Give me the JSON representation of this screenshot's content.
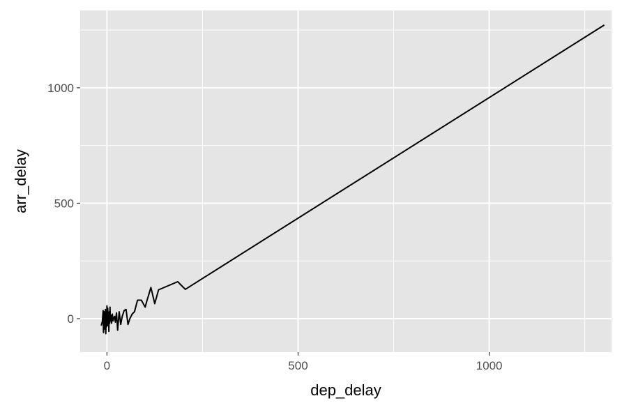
{
  "chart_data": {
    "type": "line",
    "title": "",
    "xlabel": "dep_delay",
    "ylabel": "arr_delay",
    "xlim": [
      -70,
      1320
    ],
    "ylim": [
      -145,
      1335
    ],
    "x_ticks": [
      0,
      500,
      1000
    ],
    "x_tick_labels": [
      "0",
      "500",
      "1000"
    ],
    "y_ticks": [
      0,
      500,
      1000
    ],
    "y_tick_labels": [
      "0",
      "500",
      "1000"
    ],
    "x_minor_ticks": [
      250,
      750,
      1250
    ],
    "y_minor_ticks": [
      250,
      750,
      1250
    ],
    "grid": true,
    "legend": "none",
    "colors": {
      "panel": "#e5e5e5",
      "grid": "#ffffff",
      "line": "#000000"
    },
    "series": [
      {
        "x": [
          -15,
          -12,
          -10,
          -9,
          -8,
          -7,
          -6,
          -5,
          -4,
          -3,
          -2,
          -1,
          0,
          1,
          2,
          3,
          4,
          5,
          6,
          7,
          8,
          9,
          10,
          12,
          14,
          16,
          18,
          20,
          22,
          25,
          28,
          32,
          36,
          40,
          45,
          50,
          55,
          60,
          66,
          72,
          80,
          90,
          100,
          105,
          115,
          125,
          135,
          185,
          205,
          1301
        ],
        "y": [
          -30,
          -12,
          35,
          -60,
          -20,
          30,
          -45,
          -10,
          40,
          -65,
          20,
          -35,
          55,
          -30,
          45,
          -15,
          25,
          -55,
          30,
          -20,
          50,
          -10,
          15,
          -20,
          20,
          -10,
          5,
          10,
          -15,
          25,
          -50,
          30,
          -25,
          10,
          35,
          40,
          -25,
          0,
          20,
          30,
          80,
          80,
          50,
          80,
          135,
          65,
          125,
          160,
          127,
          1272
        ]
      }
    ]
  }
}
